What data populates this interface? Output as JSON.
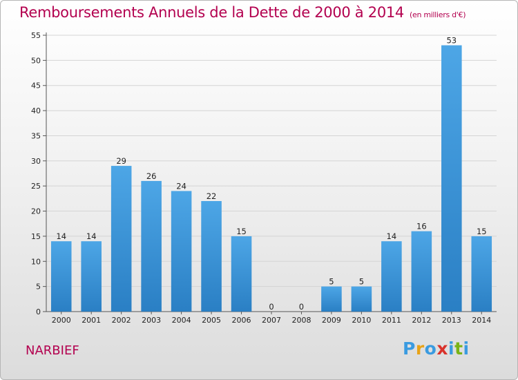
{
  "header": {
    "title": "Remboursements Annuels de la Dette de 2000 à 2014",
    "unit": "(en milliers d'€)"
  },
  "footer": {
    "commune": "NARBIEF",
    "logo_letters": [
      "P",
      "r",
      "o",
      "x",
      "i",
      "t",
      "i"
    ],
    "logo_colors": [
      "#3a9be0",
      "#e8a317",
      "#3a9be0",
      "#d9322b",
      "#3a9be0",
      "#7ab317",
      "#3a9be0"
    ]
  },
  "chart_data": {
    "type": "bar",
    "title": "Remboursements Annuels de la Dette de 2000 à 2014",
    "unit": "(en milliers d'€)",
    "xlabel": "",
    "ylabel": "",
    "categories": [
      "2000",
      "2001",
      "2002",
      "2003",
      "2004",
      "2005",
      "2006",
      "2007",
      "2008",
      "2009",
      "2010",
      "2011",
      "2012",
      "2013",
      "2014"
    ],
    "values": [
      14,
      14,
      29,
      26,
      24,
      22,
      15,
      0,
      0,
      5,
      5,
      14,
      16,
      53,
      15
    ],
    "ylim": [
      0,
      55
    ],
    "yticks": [
      0,
      5,
      10,
      15,
      20,
      25,
      30,
      35,
      40,
      45,
      50,
      55
    ],
    "grid": true,
    "bar_color": "#4da6e6",
    "bar_color_dark": "#2a7fc4"
  }
}
